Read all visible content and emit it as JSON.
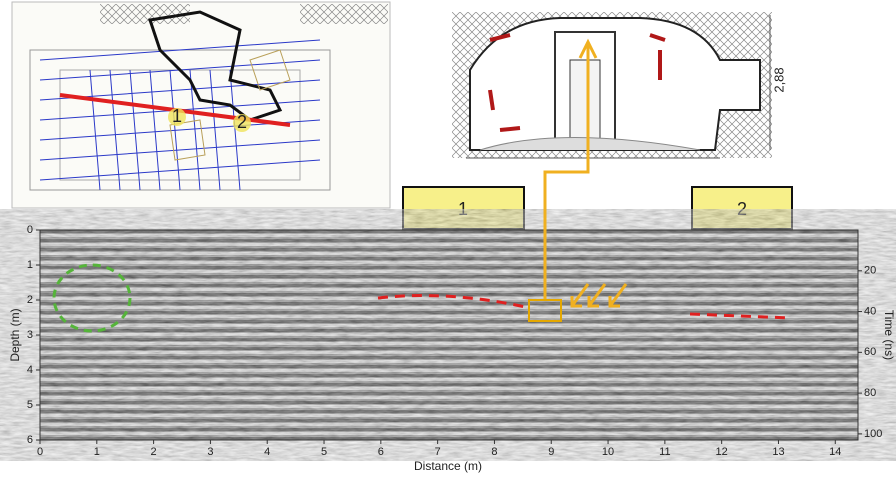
{
  "radargram": {
    "xlabel": "Distance (m)",
    "ylabel": "Depth (m)",
    "y2label": "Time (ns)",
    "xlim": [
      0,
      14.4
    ],
    "ylim": [
      0,
      6
    ],
    "y2lim": [
      0,
      103
    ],
    "xticks": [
      0,
      1,
      2,
      3,
      4,
      5,
      6,
      7,
      8,
      9,
      10,
      11,
      12,
      13,
      14
    ],
    "yticks": [
      0,
      1,
      2,
      3,
      4,
      5,
      6
    ],
    "y2ticks": [
      20,
      40,
      60,
      80,
      100
    ]
  },
  "markers": [
    "1",
    "2"
  ],
  "plan": {
    "labels": [
      "1",
      "2"
    ]
  },
  "section": {
    "dimension": "2,88"
  }
}
